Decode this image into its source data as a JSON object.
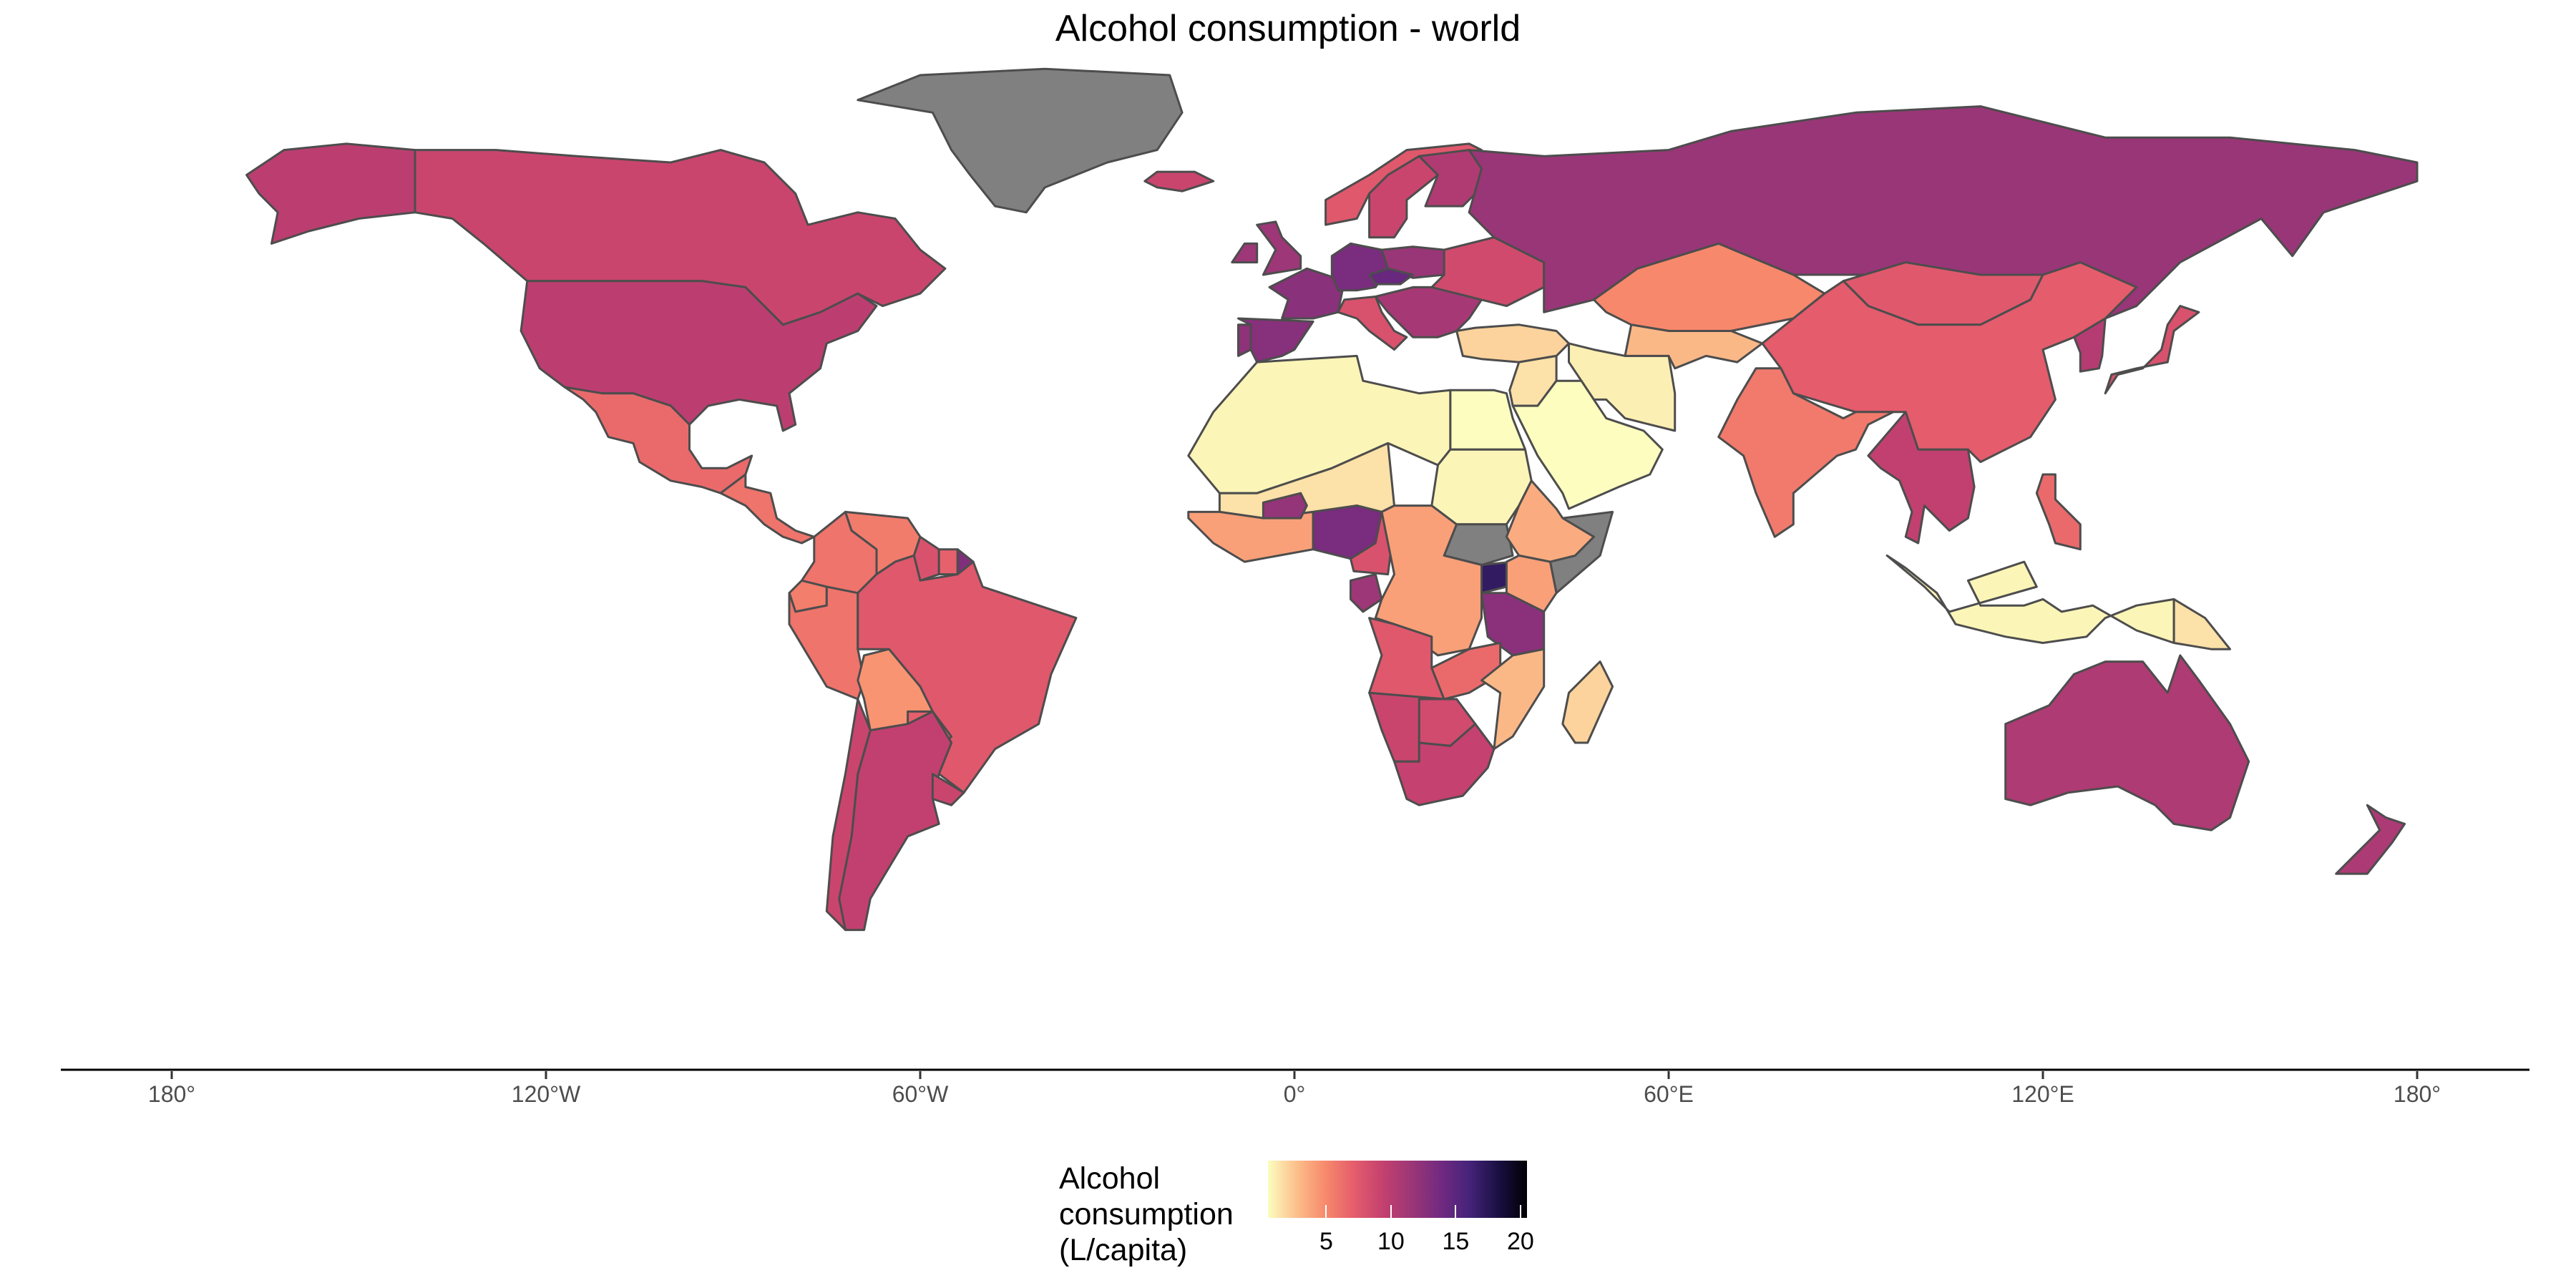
{
  "title": "Alcohol consumption - world",
  "axis": {
    "x_ticks": [
      {
        "lon": -180,
        "label": "180°"
      },
      {
        "lon": -120,
        "label": "120°W"
      },
      {
        "lon": -60,
        "label": "60°W"
      },
      {
        "lon": 0,
        "label": "0°"
      },
      {
        "lon": 60,
        "label": "60°E"
      },
      {
        "lon": 120,
        "label": "120°E"
      },
      {
        "lon": 180,
        "label": "180°"
      }
    ]
  },
  "legend": {
    "title_lines": [
      "Alcohol",
      "consumption",
      "(L/capita)"
    ],
    "ticks": [
      5,
      10,
      15,
      20
    ],
    "range": [
      0.5,
      20.5
    ],
    "colors": [
      "#fcfdbf",
      "#fcbf8b",
      "#f7896c",
      "#e55c6c",
      "#c4406f",
      "#9b3677",
      "#722a80",
      "#45237a",
      "#1a1042",
      "#000004"
    ]
  },
  "colors": {
    "no_data": "#808080",
    "border": "#4d4d4d",
    "axis_line": "#000000"
  },
  "chart_data": {
    "type": "choropleth",
    "title": "Alcohol consumption - world",
    "value_label": "Alcohol consumption (L/capita)",
    "scale": "magma (reversed)",
    "regions": [
      {
        "name": "Canada",
        "value": 9.0
      },
      {
        "name": "United States",
        "value": 9.8
      },
      {
        "name": "Alaska",
        "value": 9.8
      },
      {
        "name": "Greenland",
        "value": null
      },
      {
        "name": "Mexico",
        "value": 6.5
      },
      {
        "name": "Central America",
        "value": 6.0
      },
      {
        "name": "Colombia",
        "value": 6.0
      },
      {
        "name": "Venezuela",
        "value": 5.6
      },
      {
        "name": "Guyana",
        "value": 8.0
      },
      {
        "name": "Suriname",
        "value": 6.9
      },
      {
        "name": "French Guiana",
        "value": 13.0
      },
      {
        "name": "Ecuador",
        "value": 5.5
      },
      {
        "name": "Peru",
        "value": 6.0
      },
      {
        "name": "Brazil",
        "value": 7.5
      },
      {
        "name": "Bolivia",
        "value": 4.5
      },
      {
        "name": "Paraguay",
        "value": 7.0
      },
      {
        "name": "Argentina",
        "value": 9.5
      },
      {
        "name": "Chile",
        "value": 9.0
      },
      {
        "name": "Uruguay",
        "value": 9.0
      },
      {
        "name": "United Kingdom",
        "value": 11.5
      },
      {
        "name": "Ireland",
        "value": 11.5
      },
      {
        "name": "Iceland",
        "value": 9.0
      },
      {
        "name": "Norway",
        "value": 7.5
      },
      {
        "name": "Sweden",
        "value": 9.0
      },
      {
        "name": "Finland",
        "value": 10.5
      },
      {
        "name": "France",
        "value": 12.6
      },
      {
        "name": "Spain",
        "value": 12.7
      },
      {
        "name": "Portugal",
        "value": 12.3
      },
      {
        "name": "Germany",
        "value": 13.4
      },
      {
        "name": "Poland",
        "value": 11.7
      },
      {
        "name": "Czechia",
        "value": 14.4
      },
      {
        "name": "Italy",
        "value": 8.0
      },
      {
        "name": "Balkans",
        "value": 11.0
      },
      {
        "name": "Ukraine",
        "value": 8.6
      },
      {
        "name": "Turkey",
        "value": 2.0
      },
      {
        "name": "Russia",
        "value": 11.7
      },
      {
        "name": "Kazakhstan",
        "value": 5.0
      },
      {
        "name": "Mongolia",
        "value": 7.5
      },
      {
        "name": "China",
        "value": 7.2
      },
      {
        "name": "Korea",
        "value": 10.2
      },
      {
        "name": "Japan",
        "value": 8.0
      },
      {
        "name": "India",
        "value": 5.7
      },
      {
        "name": "Iran",
        "value": 1.0
      },
      {
        "name": "Middle East",
        "value": 1.5
      },
      {
        "name": "Arabian Peninsula",
        "value": 0.5
      },
      {
        "name": "Central Asia",
        "value": 3.0
      },
      {
        "name": "Southeast Asia",
        "value": 9.5
      },
      {
        "name": "Indonesia",
        "value": 0.8
      },
      {
        "name": "Philippines",
        "value": 6.5
      },
      {
        "name": "Papua New Guinea",
        "value": 1.5
      },
      {
        "name": "Australia",
        "value": 10.6
      },
      {
        "name": "New Zealand",
        "value": 10.7
      },
      {
        "name": "North Africa",
        "value": 0.8
      },
      {
        "name": "Egypt",
        "value": 0.4
      },
      {
        "name": "Sahel",
        "value": 1.5
      },
      {
        "name": "Sudan",
        "value": 0.8
      },
      {
        "name": "South Sudan",
        "value": null
      },
      {
        "name": "Somalia",
        "value": null
      },
      {
        "name": "Ethiopia",
        "value": 3.5
      },
      {
        "name": "West Africa",
        "value": 4.0
      },
      {
        "name": "Burkina Faso",
        "value": 12.0
      },
      {
        "name": "Nigeria",
        "value": 13.4
      },
      {
        "name": "Cameroon",
        "value": 8.0
      },
      {
        "name": "Gabon",
        "value": 11.5
      },
      {
        "name": "Central Africa",
        "value": 4.0
      },
      {
        "name": "Uganda",
        "value": 17.0
      },
      {
        "name": "Tanzania",
        "value": 12.5
      },
      {
        "name": "Kenya",
        "value": 4.0
      },
      {
        "name": "Angola",
        "value": 7.5
      },
      {
        "name": "Zambia",
        "value": 6.5
      },
      {
        "name": "Mozambique",
        "value": 3.0
      },
      {
        "name": "Namibia",
        "value": 9.0
      },
      {
        "name": "Botswana",
        "value": 8.5
      },
      {
        "name": "South Africa",
        "value": 9.3
      },
      {
        "name": "Madagascar",
        "value": 2.0
      }
    ]
  }
}
